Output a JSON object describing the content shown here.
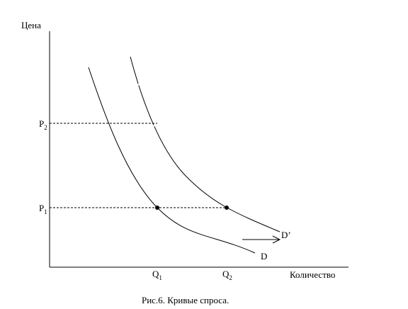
{
  "y_axis_label": "Цена",
  "x_axis_label": "Количество",
  "price_levels": [
    {
      "label": "P",
      "sub": "2"
    },
    {
      "label": "P",
      "sub": "1"
    }
  ],
  "quantity_levels": [
    {
      "label": "Q",
      "sub": "1"
    },
    {
      "label": "Q",
      "sub": "2"
    }
  ],
  "curves": {
    "original": "D",
    "shifted": "D’"
  },
  "caption": "Рис.6. Кривые спроса."
}
